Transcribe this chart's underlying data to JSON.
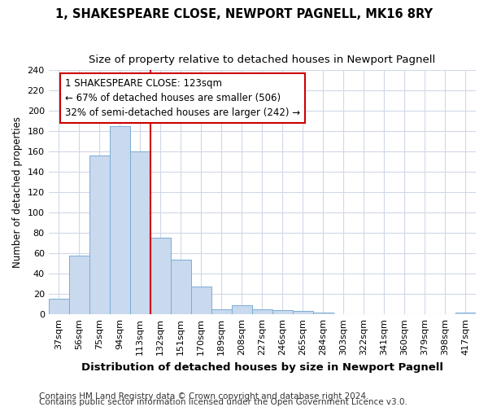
{
  "title": "1, SHAKESPEARE CLOSE, NEWPORT PAGNELL, MK16 8RY",
  "subtitle": "Size of property relative to detached houses in Newport Pagnell",
  "xlabel": "Distribution of detached houses by size in Newport Pagnell",
  "ylabel": "Number of detached properties",
  "bar_color": "#c9d9ee",
  "bar_edge_color": "#7aadd4",
  "categories": [
    "37sqm",
    "56sqm",
    "75sqm",
    "94sqm",
    "113sqm",
    "132sqm",
    "151sqm",
    "170sqm",
    "189sqm",
    "208sqm",
    "227sqm",
    "246sqm",
    "265sqm",
    "284sqm",
    "303sqm",
    "322sqm",
    "341sqm",
    "360sqm",
    "379sqm",
    "398sqm",
    "417sqm"
  ],
  "values": [
    15,
    58,
    156,
    185,
    160,
    75,
    54,
    27,
    5,
    9,
    5,
    4,
    3,
    2,
    0,
    0,
    0,
    0,
    0,
    0,
    2
  ],
  "vline_color": "#cc0000",
  "annotation_line1": "1 SHAKESPEARE CLOSE: 123sqm",
  "annotation_line2": "← 67% of detached houses are smaller (506)",
  "annotation_line3": "32% of semi-detached houses are larger (242) →",
  "annotation_box_color": "#ffffff",
  "annotation_box_edge": "#cc0000",
  "ylim": [
    0,
    240
  ],
  "yticks": [
    0,
    20,
    40,
    60,
    80,
    100,
    120,
    140,
    160,
    180,
    200,
    220,
    240
  ],
  "footer1": "Contains HM Land Registry data © Crown copyright and database right 2024.",
  "footer2": "Contains public sector information licensed under the Open Government Licence v3.0.",
  "background_color": "#ffffff",
  "grid_color": "#d0d8e8",
  "title_fontsize": 10.5,
  "subtitle_fontsize": 9.5,
  "xlabel_fontsize": 9.5,
  "ylabel_fontsize": 8.5,
  "tick_fontsize": 8,
  "annotation_fontsize": 8.5,
  "footer_fontsize": 7.5
}
